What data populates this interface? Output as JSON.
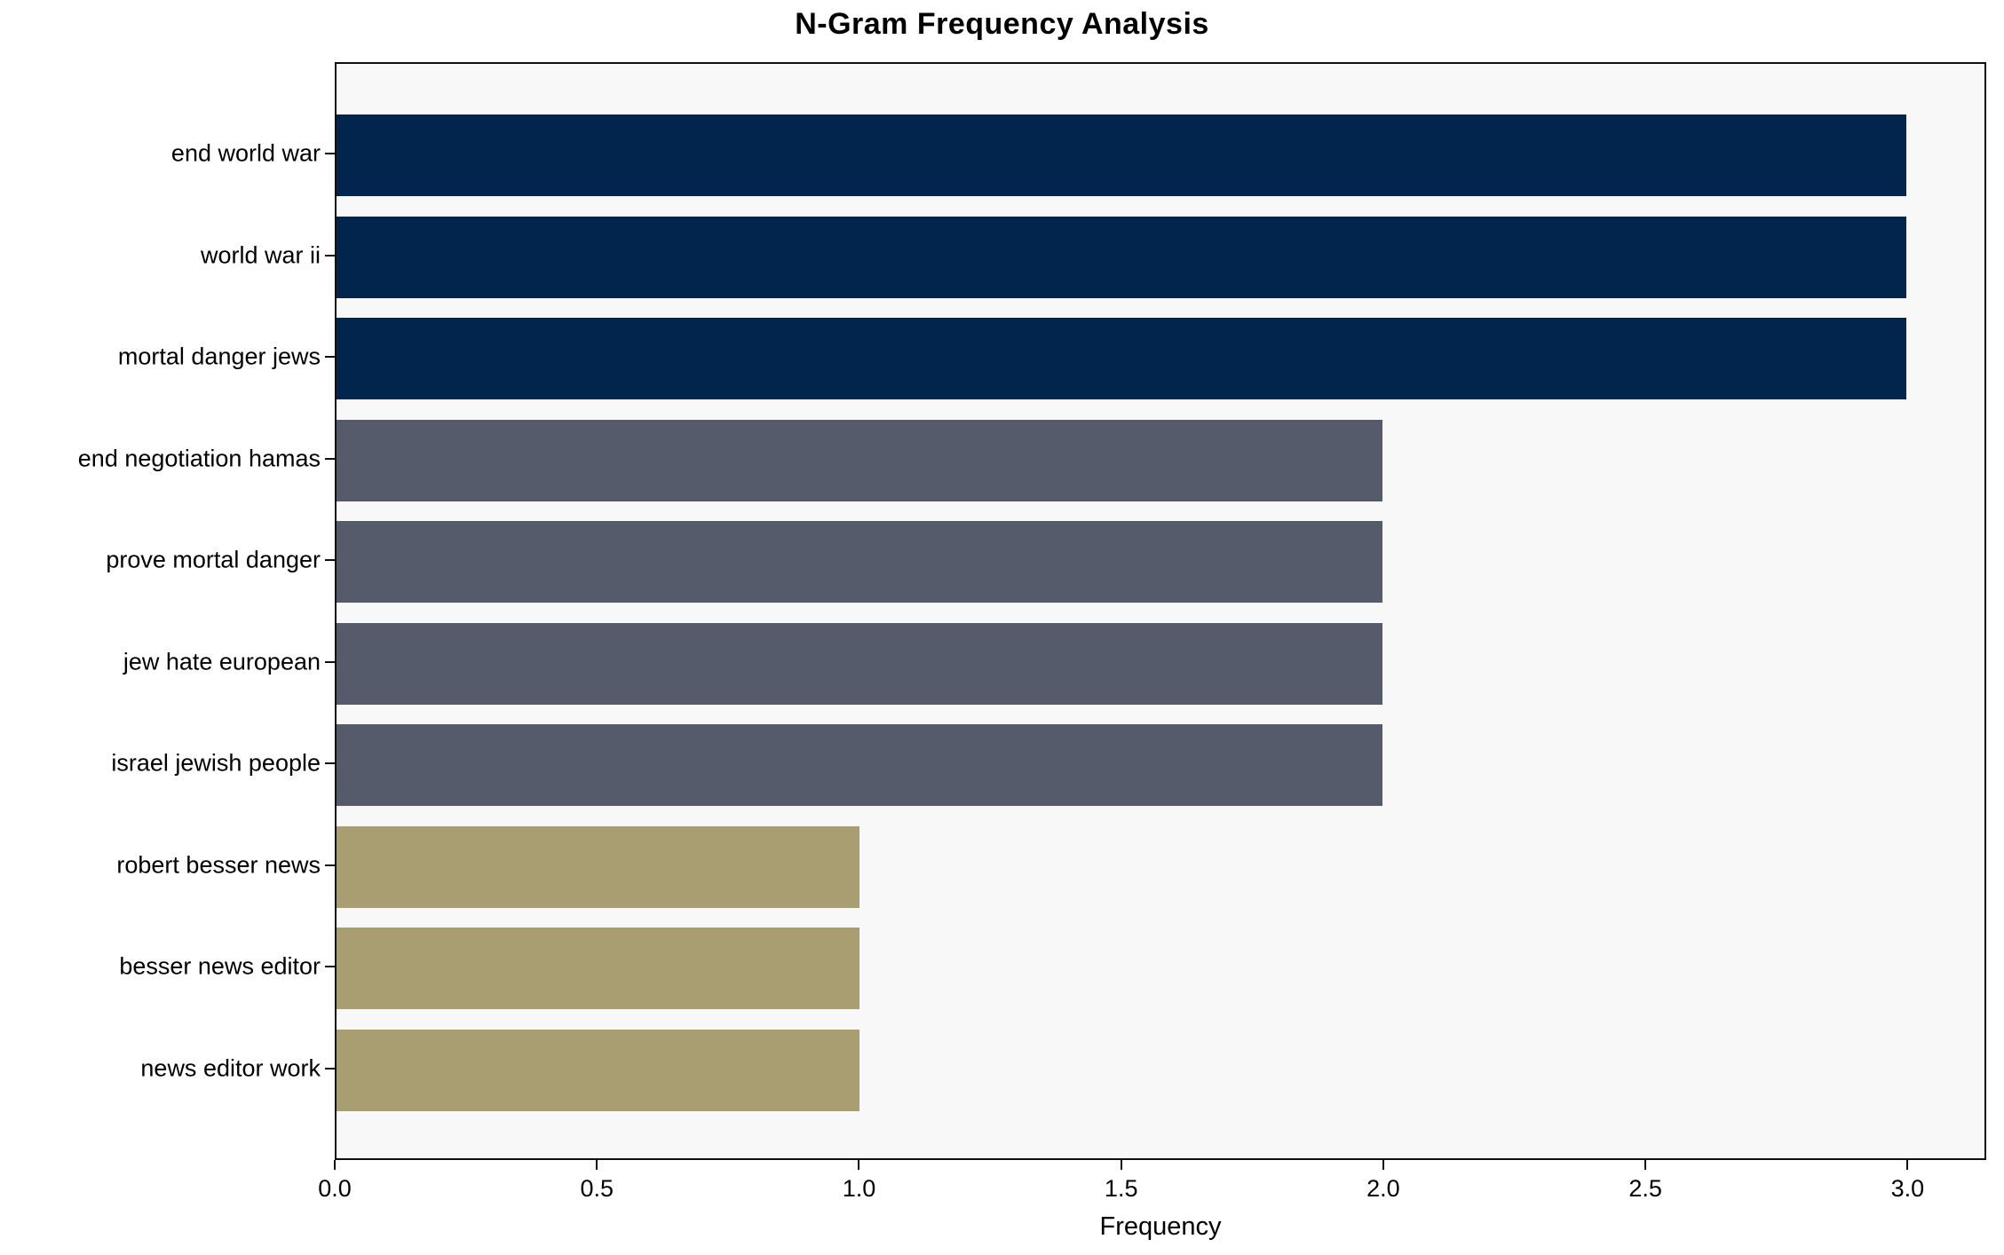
{
  "title": "N-Gram Frequency Analysis",
  "colors": {
    "bar_navy": "#02254d",
    "bar_slate": "#555b6a",
    "bar_khaki": "#a89e71",
    "plot_background": "#f8f8f9",
    "figure_background": "#ffffff",
    "axis_and_text": "#000000"
  },
  "chart_data": {
    "type": "bar",
    "orientation": "horizontal",
    "title": "N-Gram Frequency Analysis",
    "xlabel": "Frequency",
    "ylabel": "",
    "categories": [
      "end world war",
      "world war ii",
      "mortal danger jews",
      "end negotiation hamas",
      "prove mortal danger",
      "jew hate european",
      "israel jewish people",
      "robert besser news",
      "besser news editor",
      "news editor work"
    ],
    "values": [
      3,
      3,
      3,
      2,
      2,
      2,
      2,
      1,
      1,
      1
    ],
    "bar_colors": [
      "#02254d",
      "#02254d",
      "#02254d",
      "#555b6a",
      "#555b6a",
      "#555b6a",
      "#555b6a",
      "#a89e71",
      "#a89e71",
      "#a89e71"
    ],
    "xlim": [
      0,
      3.15
    ],
    "xticks": [
      {
        "value": 0.0,
        "label": "0.0"
      },
      {
        "value": 0.5,
        "label": "0.5"
      },
      {
        "value": 1.0,
        "label": "1.0"
      },
      {
        "value": 1.5,
        "label": "1.5"
      },
      {
        "value": 2.0,
        "label": "2.0"
      },
      {
        "value": 2.5,
        "label": "2.5"
      },
      {
        "value": 3.0,
        "label": "3.0"
      }
    ],
    "grid": false,
    "legend": null
  }
}
